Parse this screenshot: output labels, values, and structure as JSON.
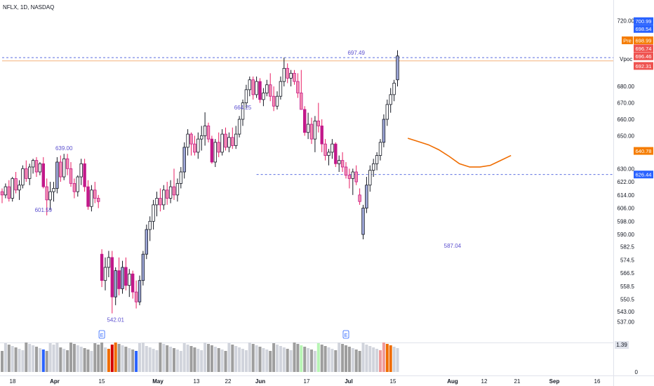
{
  "header": {
    "symbol_title": "NFLX, 1D, NASDAQ"
  },
  "chart_data": {
    "type": "candlestick",
    "symbol": "NFLX",
    "interval": "1D",
    "exchange": "NASDAQ",
    "ylim": [
      532,
      724
    ],
    "y_ticks": [
      720,
      680,
      670,
      660,
      650,
      630,
      622,
      614,
      606,
      598,
      590,
      582.5,
      574.5,
      566.5,
      558.5,
      550.5,
      543,
      537
    ],
    "x_labels": [
      "18",
      "Apr",
      "15",
      "May",
      "13",
      "22",
      "Jun",
      "17",
      "Jul",
      "15",
      "Aug",
      "12",
      "21",
      "Sep",
      "16"
    ],
    "price_tags": [
      {
        "value": "700.99",
        "color": "#2962ff"
      },
      {
        "value": "698.54",
        "color": "#2962ff"
      },
      {
        "value": "698.99",
        "color": "#f57c00",
        "prefix": "Pre"
      },
      {
        "value": "696.74",
        "color": "#ef5350"
      },
      {
        "value": "696.46",
        "color": "#ef5350"
      },
      {
        "value": "692.31",
        "color": "#ef5350"
      },
      {
        "value": "640.78",
        "color": "#f57c00"
      },
      {
        "value": "626.44",
        "color": "#2962ff"
      }
    ],
    "vpoc_label": "Vpoc",
    "annotations": [
      {
        "label": "639.00",
        "value": 639.0,
        "bar": 18
      },
      {
        "label": "601.59",
        "value": 601.59,
        "bar": 12
      },
      {
        "label": "542.01",
        "value": 542.01,
        "bar": 33
      },
      {
        "label": "664.25",
        "value": 664.25,
        "bar": 70
      },
      {
        "label": "697.49",
        "value": 697.49,
        "bar": 103
      },
      {
        "label": "587.04",
        "value": 587.04,
        "bar": 131
      }
    ],
    "hlines": [
      {
        "value": 697.49,
        "style": "dashed",
        "color": "#5b6ee1",
        "from_bar": 0
      },
      {
        "value": 626.44,
        "style": "dashed",
        "color": "#5b6ee1",
        "from_bar": 74
      },
      {
        "value": 695.5,
        "style": "solid",
        "color": "#f5b27a",
        "from_bar": 0
      }
    ],
    "ema_line": [
      {
        "bar": 118,
        "value": 648.5
      },
      {
        "bar": 121,
        "value": 646.5
      },
      {
        "bar": 124,
        "value": 644.5
      },
      {
        "bar": 127,
        "value": 641.5
      },
      {
        "bar": 130,
        "value": 637.5
      },
      {
        "bar": 133,
        "value": 633.0
      },
      {
        "bar": 136,
        "value": 631.0
      },
      {
        "bar": 139,
        "value": 631.0
      },
      {
        "bar": 142,
        "value": 632.0
      },
      {
        "bar": 145,
        "value": 635.0
      },
      {
        "bar": 148,
        "value": 638.0
      }
    ],
    "candles": [
      [
        616,
        618,
        609,
        614
      ],
      [
        614,
        621,
        612,
        619
      ],
      [
        619,
        623,
        610,
        612
      ],
      [
        612,
        625,
        610,
        624
      ],
      [
        624,
        628,
        615,
        617
      ],
      [
        617,
        623,
        611,
        620
      ],
      [
        620,
        632,
        618,
        630
      ],
      [
        630,
        635,
        622,
        624
      ],
      [
        624,
        633,
        620,
        631
      ],
      [
        631,
        636,
        627,
        635
      ],
      [
        635,
        637,
        625,
        628
      ],
      [
        628,
        634,
        626,
        633
      ],
      [
        633,
        637,
        618,
        619
      ],
      [
        619,
        624,
        601.59,
        611
      ],
      [
        611,
        622,
        605,
        616
      ],
      [
        616,
        622,
        610,
        618
      ],
      [
        618,
        637,
        615,
        634
      ],
      [
        634,
        638,
        622,
        625
      ],
      [
        625,
        639,
        623,
        636
      ],
      [
        636,
        639,
        626,
        630
      ],
      [
        630,
        634,
        619,
        621
      ],
      [
        621,
        624,
        612,
        616
      ],
      [
        616,
        626,
        613,
        625
      ],
      [
        625,
        636,
        620,
        633
      ],
      [
        633,
        636,
        616,
        619
      ],
      [
        619,
        623,
        605,
        607
      ],
      [
        607,
        620,
        604,
        617
      ],
      [
        617,
        622,
        609,
        612
      ],
      [
        612,
        614,
        606,
        610
      ],
      [
        578,
        581,
        558,
        562
      ],
      [
        562,
        576,
        556,
        570
      ],
      [
        570,
        580,
        564,
        576
      ],
      [
        576,
        580,
        542.01,
        552
      ],
      [
        552,
        570,
        547,
        568
      ],
      [
        568,
        576,
        553,
        557
      ],
      [
        557,
        574,
        554,
        570
      ],
      [
        570,
        576,
        556,
        559
      ],
      [
        559,
        569,
        552,
        566
      ],
      [
        566,
        568,
        551,
        555
      ],
      [
        555,
        562,
        545,
        549
      ],
      [
        549,
        565,
        547,
        562
      ],
      [
        562,
        580,
        559,
        578
      ],
      [
        578,
        596,
        575,
        593
      ],
      [
        593,
        601,
        586,
        598
      ],
      [
        598,
        611,
        593,
        608
      ],
      [
        608,
        616,
        601,
        612
      ],
      [
        612,
        618,
        604,
        608
      ],
      [
        608,
        620,
        605,
        617
      ],
      [
        617,
        622,
        608,
        612
      ],
      [
        612,
        623,
        609,
        619
      ],
      [
        619,
        630,
        611,
        614
      ],
      [
        614,
        624,
        610,
        621
      ],
      [
        621,
        631,
        618,
        628
      ],
      [
        628,
        646,
        624,
        643
      ],
      [
        643,
        654,
        638,
        651
      ],
      [
        651,
        652,
        638,
        645
      ],
      [
        645,
        650,
        638,
        640
      ],
      [
        640,
        652,
        636,
        648
      ],
      [
        648,
        656,
        641,
        650
      ],
      [
        650,
        664.25,
        644,
        656
      ],
      [
        656,
        658,
        646,
        648
      ],
      [
        648,
        650,
        633,
        634
      ],
      [
        634,
        648,
        631,
        646
      ],
      [
        646,
        652,
        637,
        640
      ],
      [
        640,
        654,
        638,
        651
      ],
      [
        651,
        655,
        641,
        643
      ],
      [
        643,
        652,
        640,
        649
      ],
      [
        649,
        655,
        642,
        644
      ],
      [
        644,
        656,
        642,
        651
      ],
      [
        651,
        662,
        649,
        660
      ],
      [
        660,
        672,
        656,
        670
      ],
      [
        670,
        681,
        667,
        678
      ],
      [
        678,
        686,
        674,
        684
      ],
      [
        684,
        686,
        672,
        675
      ],
      [
        675,
        686,
        673,
        683
      ],
      [
        683,
        685,
        670,
        672
      ],
      [
        672,
        679,
        668,
        676
      ],
      [
        676,
        684,
        674,
        681
      ],
      [
        681,
        688,
        671,
        674
      ],
      [
        674,
        680,
        665,
        668
      ],
      [
        668,
        677,
        666,
        674
      ],
      [
        674,
        686,
        672,
        683
      ],
      [
        683,
        697.49,
        680,
        691
      ],
      [
        691,
        694,
        682,
        685
      ],
      [
        685,
        690,
        680,
        688
      ],
      [
        688,
        690,
        681,
        683
      ],
      [
        683,
        688,
        673,
        676
      ],
      [
        676,
        690,
        666,
        666
      ],
      [
        666,
        668,
        650,
        652
      ],
      [
        652,
        664,
        648,
        657
      ],
      [
        657,
        661,
        645,
        648
      ],
      [
        648,
        662,
        640,
        659
      ],
      [
        659,
        670,
        652,
        656
      ],
      [
        656,
        660,
        640,
        645
      ],
      [
        645,
        648,
        635,
        638
      ],
      [
        638,
        642,
        632,
        640
      ],
      [
        640,
        648,
        636,
        645
      ],
      [
        645,
        646,
        631,
        633
      ],
      [
        633,
        638,
        628,
        635
      ],
      [
        635,
        640,
        628,
        631
      ],
      [
        631,
        634,
        624,
        626
      ],
      [
        626,
        630,
        618,
        624
      ],
      [
        624,
        630,
        614,
        628
      ],
      [
        628,
        632,
        620,
        622
      ],
      [
        614,
        618,
        608,
        610
      ],
      [
        590,
        608,
        587.04,
        606
      ],
      [
        606,
        625,
        603,
        620
      ],
      [
        620,
        632,
        616,
        629
      ],
      [
        629,
        636,
        625,
        633
      ],
      [
        633,
        640,
        629,
        638
      ],
      [
        638,
        648,
        635,
        646
      ],
      [
        646,
        663,
        643,
        660
      ],
      [
        660,
        672,
        656,
        669
      ],
      [
        669,
        679,
        664,
        675
      ],
      [
        675,
        684,
        671,
        682
      ],
      [
        684,
        702,
        680,
        698.5
      ]
    ],
    "volume_label": "1.39",
    "volume_axis": [
      "1.39",
      "0"
    ],
    "earnings_markers": [
      {
        "bar": 29,
        "label": "E"
      },
      {
        "bar": 100,
        "label": "E"
      }
    ]
  }
}
